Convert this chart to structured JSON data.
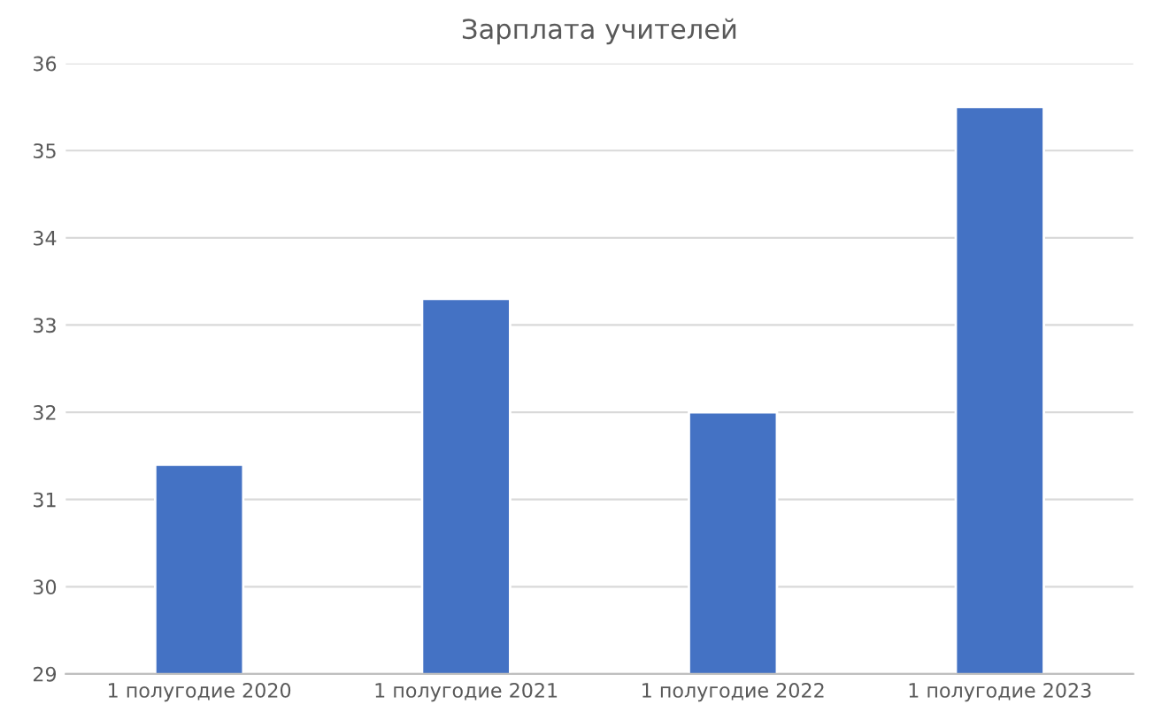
{
  "chart_data": {
    "type": "bar",
    "title": "Зарплата учителей",
    "categories": [
      "1 полугодие 2020",
      "1 полугодие 2021",
      "1 полугодие 2022",
      "1 полугодие 2023"
    ],
    "values": [
      31.4,
      33.3,
      32.0,
      35.5
    ],
    "color": "#4472c4",
    "ylim": [
      29,
      36
    ],
    "yticks": [
      29,
      30,
      31,
      32,
      33,
      34,
      35,
      36
    ],
    "grid": "y"
  }
}
